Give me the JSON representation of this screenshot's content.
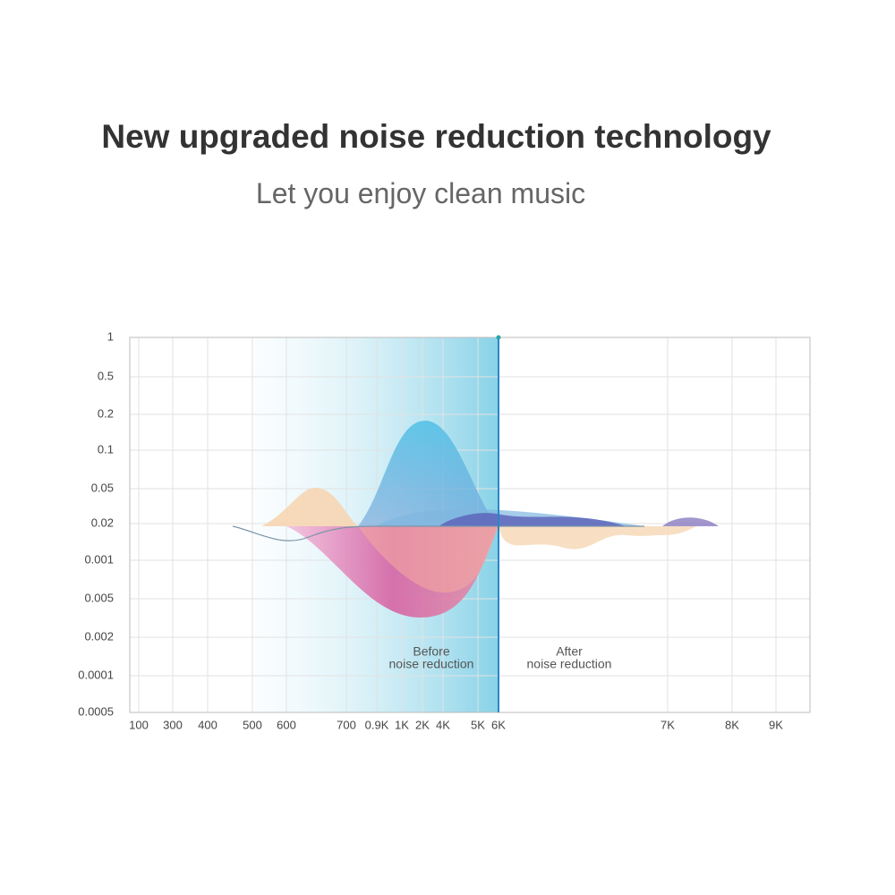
{
  "header": {
    "title": "New upgraded noise reduction technology",
    "subtitle": "Let you enjoy clean music"
  },
  "graphic": {
    "y_labels": [
      "1",
      "0.5",
      "0.2",
      "0.1",
      "0.05",
      "0.02",
      "0.001",
      "0.005",
      "0.002",
      "0.0001",
      "0.0005"
    ],
    "x_labels": [
      "100",
      "300",
      "400",
      "500",
      "600",
      "700",
      "0.9K",
      "1K",
      "2K",
      "4K",
      "5K",
      "6K",
      "7K",
      "8K",
      "9K"
    ],
    "before": [
      "Before",
      "noise reduction"
    ],
    "after": [
      "After",
      "noise reduction"
    ]
  }
}
